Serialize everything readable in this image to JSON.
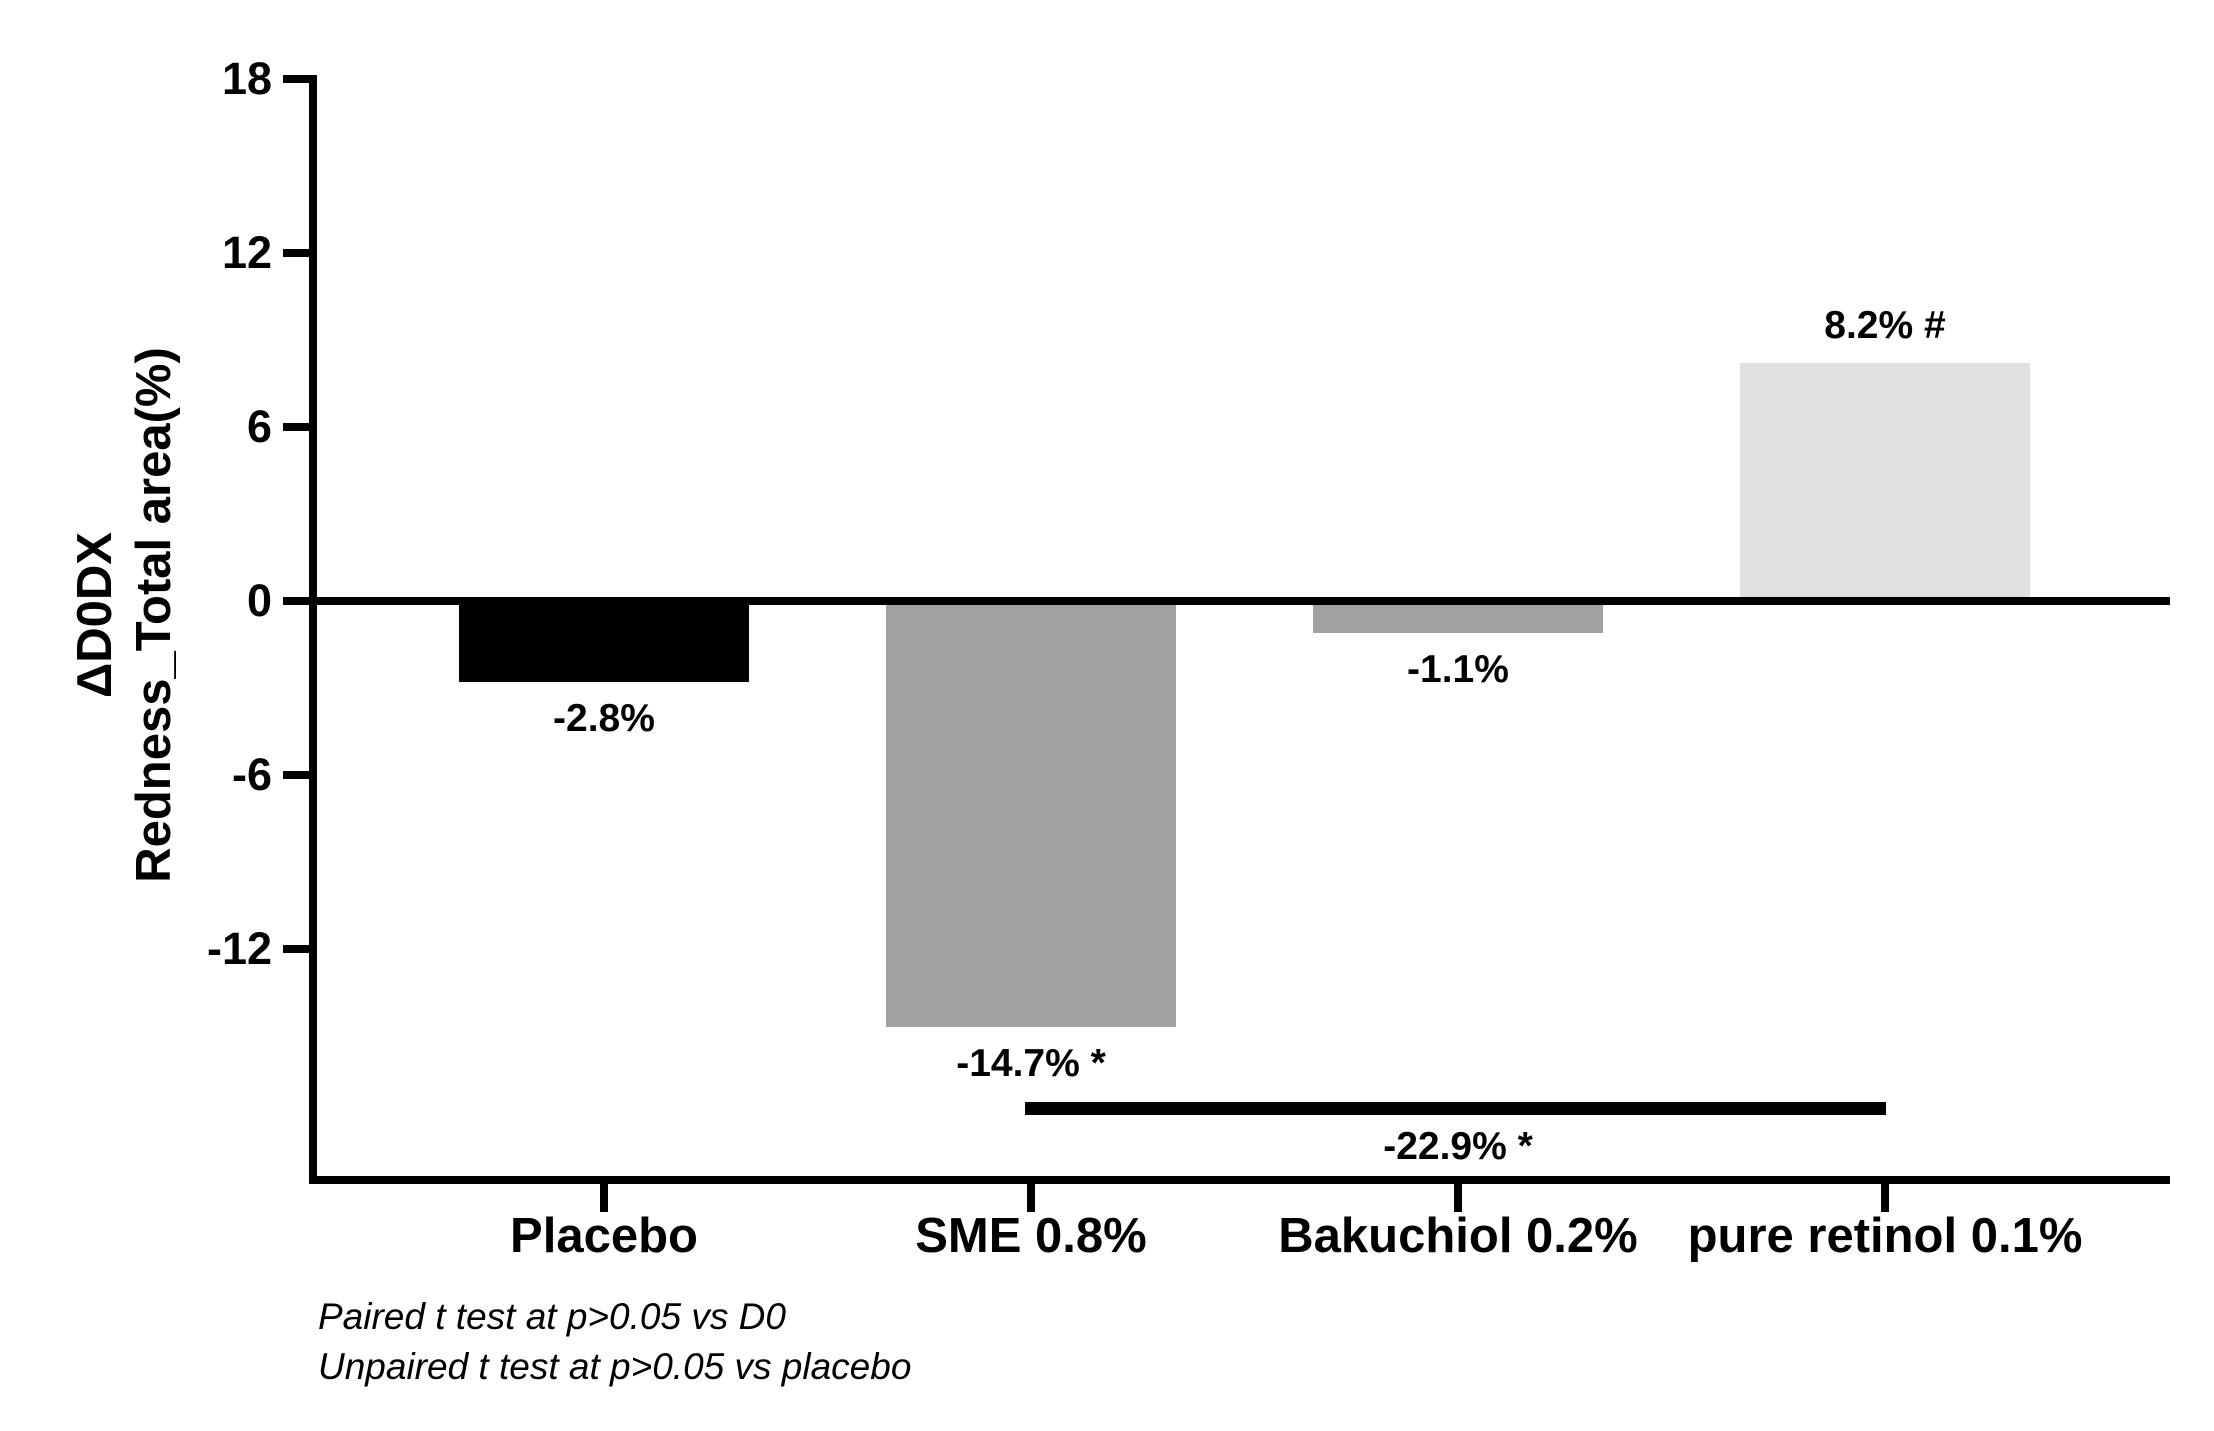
{
  "figure": {
    "background_color": "#ffffff",
    "axis_color": "#000000",
    "text_color": "#000000"
  },
  "chart_data": {
    "type": "bar",
    "title": "",
    "ylabel_lines": [
      "ΔD0DX",
      "Redness_Total area(%)"
    ],
    "xlabel": "",
    "categories": [
      "Placebo",
      "SME 0.8%",
      "Bakuchiol 0.2%",
      "pure retinol 0.1%"
    ],
    "values": [
      -2.8,
      -14.7,
      -1.1,
      8.2
    ],
    "bar_labels": [
      "-2.8%",
      "-14.7% *",
      "-1.1%",
      "8.2% #"
    ],
    "bar_colors": [
      "#000000",
      "#a1a1a1",
      "#a1a1a1",
      "#e0e0e0"
    ],
    "ylim": [
      -20,
      18
    ],
    "yticks": [
      18,
      12,
      6,
      0,
      -6,
      -12
    ],
    "grid": false,
    "legend": null,
    "zero_baseline": true,
    "comparison": {
      "label": "-22.9% *",
      "from_index": 1,
      "to_index": 3
    },
    "footnotes": [
      "Paired t test at p>0.05 vs D0",
      "Unpaired t test at p>0.05 vs placebo"
    ]
  }
}
